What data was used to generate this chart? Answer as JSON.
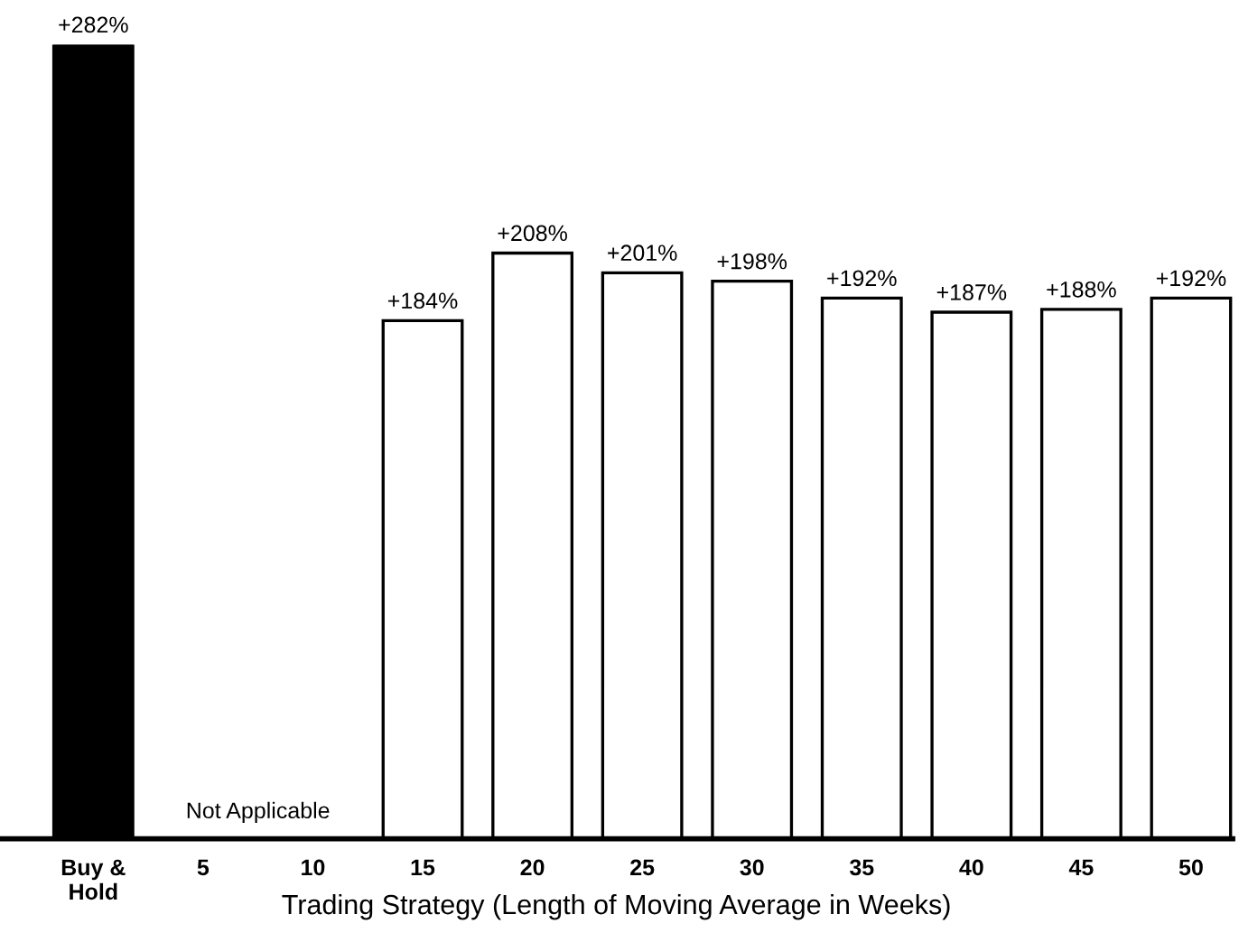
{
  "chart_data": {
    "type": "bar",
    "xlabel": "Trading Strategy (Length of Moving Average in Weeks)",
    "categories": [
      "Buy &\nHold",
      "5",
      "10",
      "15",
      "20",
      "25",
      "30",
      "35",
      "40",
      "45",
      "50"
    ],
    "values": [
      282,
      null,
      null,
      184,
      208,
      201,
      198,
      192,
      187,
      188,
      192
    ],
    "colors": [
      "#000000",
      "#ffffff",
      "#ffffff",
      "#ffffff",
      "#ffffff",
      "#ffffff",
      "#ffffff",
      "#ffffff",
      "#ffffff",
      "#ffffff",
      "#ffffff"
    ],
    "value_labels": [
      "+282%",
      null,
      null,
      "+184%",
      "+208%",
      "+201%",
      "+198%",
      "+192%",
      "+187%",
      "+188%",
      "+192%"
    ],
    "annotations": [
      "Not Applicable"
    ],
    "grid": false,
    "legend": false
  }
}
